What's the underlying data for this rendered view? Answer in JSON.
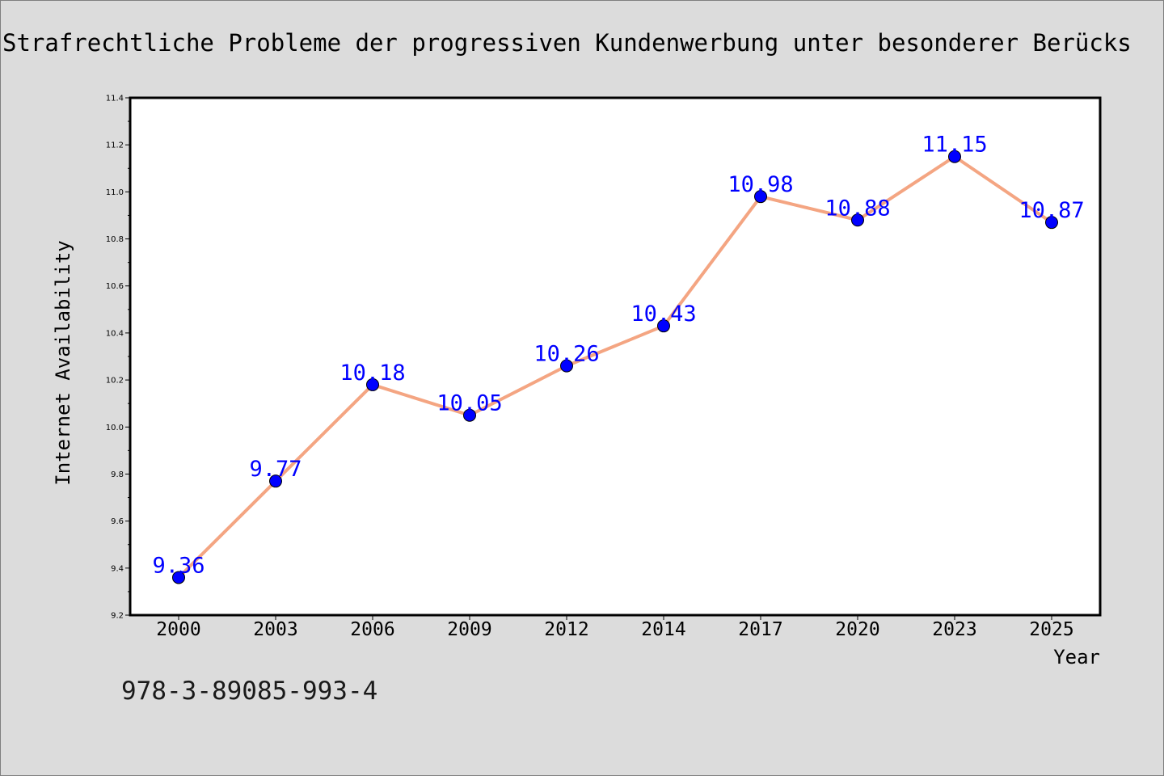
{
  "page": {
    "title": "Strafrechtliche Probleme der progressiven Kundenwerbung unter besonderer Berücks",
    "isbn": "978-3-89085-993-4"
  },
  "colors": {
    "background": "#dcdcdc",
    "plot_background": "#ffffff",
    "line": "#f4a582",
    "marker": "#0000ff",
    "label": "#0000ff"
  },
  "chart_data": {
    "type": "line",
    "title": "Strafrechtliche Probleme der progressiven Kundenwerbung unter besonderer Berücks",
    "xlabel": "Year",
    "ylabel": "Internet Availability",
    "categories": [
      "2000",
      "2003",
      "2006",
      "2009",
      "2012",
      "2014",
      "2017",
      "2020",
      "2023",
      "2025"
    ],
    "series": [
      {
        "values": [
          9.36,
          9.77,
          10.18,
          10.05,
          10.26,
          10.43,
          10.98,
          10.88,
          11.15,
          10.87
        ]
      }
    ],
    "ylim": [
      9.2,
      11.4
    ],
    "yticks": [
      "9.2",
      "9.4",
      "9.6",
      "9.8",
      "10.0",
      "10.2",
      "10.4",
      "10.6",
      "10.8",
      "11.0",
      "11.2",
      "11.4"
    ],
    "data_labels": [
      "9.36",
      "9.77",
      "10.18",
      "10.05",
      "10.26",
      "10.43",
      "10.98",
      "10.88",
      "11.15",
      "10.87"
    ],
    "grid": false,
    "legend": false
  }
}
